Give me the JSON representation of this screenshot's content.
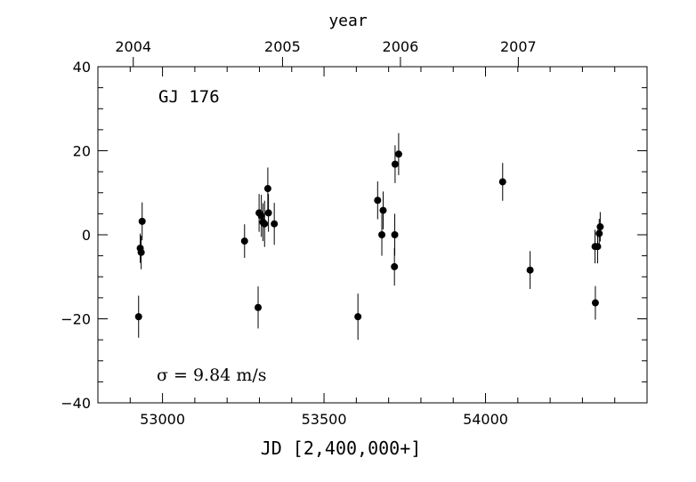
{
  "chart_data": {
    "type": "scatter",
    "title": "",
    "xlabel": "JD [2,400,000+]",
    "ylabel": "",
    "top_xlabel": "year",
    "xlim": [
      52800,
      54500
    ],
    "ylim": [
      -40,
      40
    ],
    "x_ticks": [
      53000,
      53500,
      54000
    ],
    "x_tick_labels": [
      "53000",
      "53500",
      "54000"
    ],
    "y_ticks": [
      -40,
      -20,
      0,
      20,
      40
    ],
    "y_tick_labels": [
      "−40",
      "−20",
      "0",
      "20",
      "40"
    ],
    "year_ticks": [
      {
        "label": "2004",
        "jd": 52909.5
      },
      {
        "label": "2005",
        "jd": 53371.5
      },
      {
        "label": "2006",
        "jd": 53736.5
      },
      {
        "label": "2007",
        "jd": 54101.5
      }
    ],
    "annotations": {
      "star": "GJ 176",
      "sigma": "σ = 9.84 m/s"
    },
    "grid": false,
    "legend": "none",
    "series": [
      {
        "points": [
          {
            "x": 52926,
            "y": -19.5,
            "err": 5.0
          },
          {
            "x": 52931,
            "y": -3.2,
            "err": 3.5
          },
          {
            "x": 52934,
            "y": -4.2,
            "err": 4.0
          },
          {
            "x": 52937,
            "y": 3.2,
            "err": 4.5
          },
          {
            "x": 53254,
            "y": -1.5,
            "err": 4.0
          },
          {
            "x": 53296,
            "y": -17.3,
            "err": 5.0
          },
          {
            "x": 53299,
            "y": 5.2,
            "err": 4.5
          },
          {
            "x": 53306,
            "y": 4.5,
            "err": 5.0
          },
          {
            "x": 53311,
            "y": 3.0,
            "err": 4.5
          },
          {
            "x": 53316,
            "y": 2.6,
            "err": 5.5
          },
          {
            "x": 53326,
            "y": 11.0,
            "err": 5.0
          },
          {
            "x": 53328,
            "y": 5.2,
            "err": 4.5
          },
          {
            "x": 53346,
            "y": 2.6,
            "err": 5.0
          },
          {
            "x": 53605,
            "y": -19.5,
            "err": 5.5
          },
          {
            "x": 53666,
            "y": 8.2,
            "err": 4.5
          },
          {
            "x": 53679,
            "y": 0.0,
            "err": 5.0
          },
          {
            "x": 53683,
            "y": 5.8,
            "err": 4.5
          },
          {
            "x": 53718,
            "y": -7.6,
            "err": 4.5
          },
          {
            "x": 53719,
            "y": 0.0,
            "err": 5.0
          },
          {
            "x": 53720,
            "y": 16.8,
            "err": 4.5
          },
          {
            "x": 53731,
            "y": 19.2,
            "err": 5.0
          },
          {
            "x": 54053,
            "y": 12.6,
            "err": 4.5
          },
          {
            "x": 54138,
            "y": -8.4,
            "err": 4.5
          },
          {
            "x": 54339,
            "y": -2.8,
            "err": 4.0
          },
          {
            "x": 54340,
            "y": -16.2,
            "err": 4.0
          },
          {
            "x": 54347,
            "y": -2.8,
            "err": 4.0
          },
          {
            "x": 54352,
            "y": 0.3,
            "err": 3.5
          },
          {
            "x": 54355,
            "y": 1.9,
            "err": 3.5
          }
        ]
      }
    ]
  }
}
